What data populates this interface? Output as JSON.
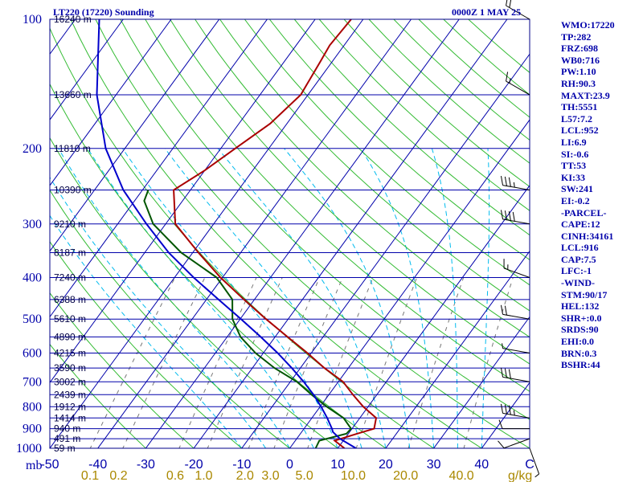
{
  "header": {
    "station": "LT220 (17220) Sounding",
    "time": "0000Z  1 MAY 25"
  },
  "indices": [
    "WMO:17220",
    "TP:282",
    "FRZ:698",
    "WB0:716",
    "PW:1.10",
    "RH:90.3",
    "MAXT:23.9",
    "TH:5551",
    "L57:7.2",
    "LCL:952",
    "LI:6.9",
    "SI:-0.6",
    "TT:53",
    "KI:33",
    "SW:241",
    "EI:-0.2",
    "-PARCEL-",
    "CAPE:12",
    "CINH:34161",
    "LCL:916",
    "CAP:7.5",
    "LFC:-1",
    "-WIND-",
    "STM:90/17",
    "HEL:132",
    "SHR+:0.0",
    "SRDS:90",
    "EHI:0.0",
    "BRN:0.3",
    "BSHR:44"
  ],
  "colors": {
    "frame": "#000088",
    "isobar": "#0000aa",
    "isotherm": "#0000aa",
    "dry_adiabat": "#33bb33",
    "moist_adiabat": "#00bbee",
    "mixing_ratio": "#777777",
    "temperature": "#aa0000",
    "dewpoint": "#005500",
    "parcel": "#0000cc",
    "wind_barb": "#000000"
  },
  "chart_data": {
    "type": "line",
    "diagram": "skew-T log-P",
    "pressure_axis": {
      "unit_label": "mb",
      "levels": [
        100,
        200,
        300,
        400,
        500,
        600,
        700,
        800,
        900,
        1000
      ],
      "range": [
        100,
        1050
      ],
      "scale": "log"
    },
    "temperature_axis": {
      "ticks": [
        "-50",
        "-40",
        "-30",
        "-20",
        "-10",
        "0",
        "10",
        "20",
        "30",
        "40",
        "C"
      ],
      "range": [
        -50,
        50
      ]
    },
    "mixing_ratio_axis": {
      "unit_label": "g/kg",
      "ticks": [
        "0.1",
        "0.2",
        "0.6",
        "1.0",
        "2.0",
        "3.0",
        "5.0",
        "10.0",
        "20.0",
        "40.0"
      ]
    },
    "height_labels": [
      {
        "p": 100,
        "label": "16240 m"
      },
      {
        "p": 150,
        "label": "13660 m"
      },
      {
        "p": 200,
        "label": "11810 m"
      },
      {
        "p": 250,
        "label": "10390 m"
      },
      {
        "p": 300,
        "label": "9210 m"
      },
      {
        "p": 350,
        "label": "8187 m"
      },
      {
        "p": 400,
        "label": "7240 m"
      },
      {
        "p": 450,
        "label": "6388 m"
      },
      {
        "p": 500,
        "label": "5610 m"
      },
      {
        "p": 550,
        "label": "4890 m"
      },
      {
        "p": 600,
        "label": "4215 m"
      },
      {
        "p": 650,
        "label": "3590 m"
      },
      {
        "p": 700,
        "label": "3002 m"
      },
      {
        "p": 750,
        "label": "2439 m"
      },
      {
        "p": 800,
        "label": "1912 m"
      },
      {
        "p": 850,
        "label": "1414 m"
      },
      {
        "p": 900,
        "label": "940 m"
      },
      {
        "p": 950,
        "label": "491 m"
      },
      {
        "p": 1000,
        "label": "59 m"
      }
    ],
    "series": [
      {
        "name": "T",
        "points": [
          [
            1000,
            11.4
          ],
          [
            960,
            8.2
          ],
          [
            925,
            11.8
          ],
          [
            900,
            14.6
          ],
          [
            850,
            13.4
          ],
          [
            800,
            9.0
          ],
          [
            750,
            5.0
          ],
          [
            700,
            1.0
          ],
          [
            650,
            -5.0
          ],
          [
            600,
            -10.8
          ],
          [
            550,
            -17.4
          ],
          [
            500,
            -24.6
          ],
          [
            450,
            -32.2
          ],
          [
            400,
            -40.4
          ],
          [
            350,
            -48.8
          ],
          [
            300,
            -58.0
          ],
          [
            250,
            -63.5
          ],
          [
            225,
            -60.0
          ],
          [
            200,
            -57.0
          ],
          [
            175,
            -53.5
          ],
          [
            150,
            -51.5
          ],
          [
            125,
            -52.5
          ],
          [
            115,
            -53.0
          ],
          [
            100,
            -52.5
          ]
        ]
      },
      {
        "name": "Td",
        "points": [
          [
            1000,
            5.4
          ],
          [
            960,
            5.0
          ],
          [
            925,
            9.6
          ],
          [
            900,
            9.8
          ],
          [
            850,
            6.6
          ],
          [
            800,
            1.4
          ],
          [
            750,
            -3.6
          ],
          [
            700,
            -8.6
          ],
          [
            650,
            -15.4
          ],
          [
            600,
            -21.6
          ],
          [
            550,
            -27.2
          ],
          [
            500,
            -31.6
          ],
          [
            450,
            -34.6
          ],
          [
            400,
            -41.2
          ],
          [
            350,
            -52.4
          ],
          [
            300,
            -62.6
          ],
          [
            265,
            -68.0
          ],
          [
            250,
            -68.8
          ]
        ]
      },
      {
        "name": "parcel",
        "points": [
          [
            1000,
            13.8
          ],
          [
            950,
            9.0
          ],
          [
            916,
            6.5
          ],
          [
            900,
            5.8
          ],
          [
            850,
            3.2
          ],
          [
            800,
            0.2
          ],
          [
            750,
            -3.2
          ],
          [
            700,
            -7.2
          ],
          [
            650,
            -11.8
          ],
          [
            600,
            -17.0
          ],
          [
            550,
            -23.0
          ],
          [
            500,
            -29.8
          ],
          [
            450,
            -37.5
          ],
          [
            400,
            -46.0
          ],
          [
            350,
            -55.0
          ],
          [
            300,
            -64.0
          ],
          [
            250,
            -74.0
          ],
          [
            200,
            -84.0
          ],
          [
            150,
            -94.0
          ],
          [
            100,
            -105.0
          ]
        ]
      }
    ],
    "wind_barbs": [
      {
        "p": 1000,
        "dir": 160,
        "kt": 5
      },
      {
        "p": 950,
        "dir": 250,
        "kt": 10
      },
      {
        "p": 900,
        "dir": 270,
        "kt": 10
      },
      {
        "p": 850,
        "dir": 280,
        "kt": 35
      },
      {
        "p": 700,
        "dir": 280,
        "kt": 30
      },
      {
        "p": 600,
        "dir": 280,
        "kt": 5
      },
      {
        "p": 500,
        "dir": 280,
        "kt": 20
      },
      {
        "p": 400,
        "dir": 290,
        "kt": 15
      },
      {
        "p": 300,
        "dir": 280,
        "kt": 40
      },
      {
        "p": 250,
        "dir": 280,
        "kt": 35
      },
      {
        "p": 150,
        "dir": 300,
        "kt": 15
      },
      {
        "p": 100,
        "dir": 300,
        "kt": 20
      }
    ]
  }
}
